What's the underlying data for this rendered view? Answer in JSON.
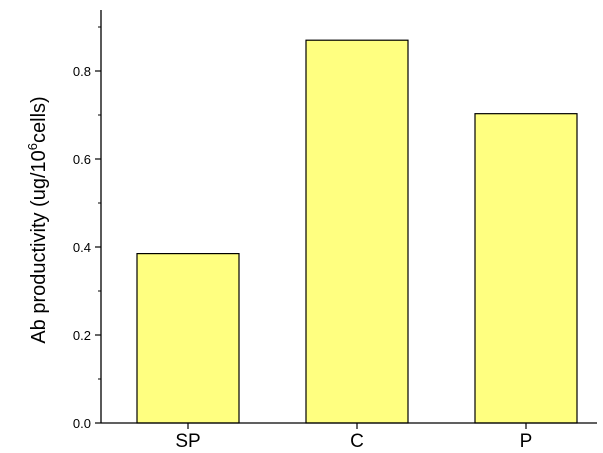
{
  "chart_data": {
    "type": "bar",
    "categories": [
      "SP",
      "C",
      "P"
    ],
    "values": [
      0.385,
      0.87,
      0.703
    ],
    "title": "",
    "xlabel": "",
    "ylabel": "Ab productivity (ug/10",
    "ylabel_superscript": "6",
    "ylabel_suffix": "cells)",
    "ylim": [
      0.0,
      0.93
    ],
    "yticks": [
      "0.0",
      "0.2",
      "0.4",
      "0.6",
      "0.8"
    ],
    "grid": false,
    "colors": {
      "bar_fill": "#ffff80",
      "bar_stroke": "#000000",
      "axis": "#000000"
    }
  }
}
